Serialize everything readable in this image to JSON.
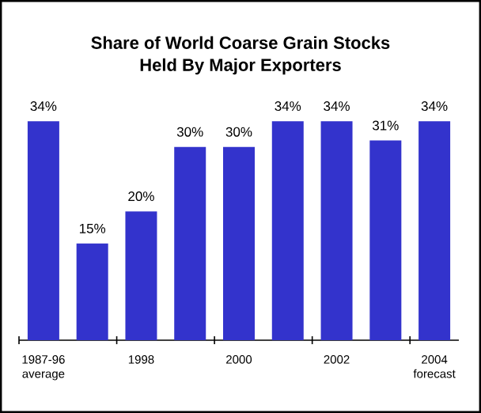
{
  "chart_data": {
    "type": "bar",
    "title": "Share of  World Coarse Grain Stocks\nHeld By Major Exporters",
    "categories": [
      "1987-96 average",
      null,
      "1998",
      null,
      "2000",
      null,
      "2002",
      null,
      "2004 forecast"
    ],
    "values": [
      34,
      15,
      20,
      30,
      30,
      34,
      34,
      31,
      34
    ],
    "value_labels": [
      "34%",
      "15%",
      "20%",
      "30%",
      "30%",
      "34%",
      "34%",
      "31%",
      "34%"
    ],
    "color": "#3333cc",
    "tick_labels": "x"
  }
}
